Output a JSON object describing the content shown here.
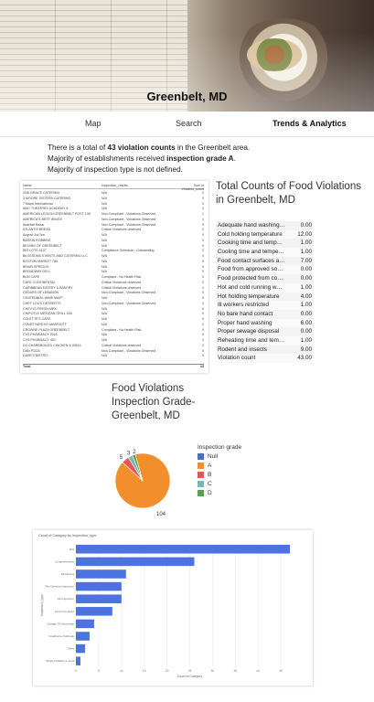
{
  "hero": {
    "title": "Greenbelt, MD"
  },
  "nav": {
    "items": [
      "Map",
      "Search",
      "Trends & Analytics"
    ],
    "active": "Trends & Analytics"
  },
  "summary": {
    "line1_pre": "There is a total of ",
    "line1_bold": "43 violation counts",
    "line1_post": " in the Greenbelt area.",
    "line2_pre": "Majority of establishments received ",
    "line2_bold": "inspection grade A",
    "line2_post": ".",
    "line3": "Majority of inspection type is not defined."
  },
  "inspection_table": {
    "headers": [
      "Name",
      "Inspection_results",
      "Sum of Violation_count"
    ],
    "rows": [
      [
        "2ND GRACE CATERING",
        "N/A",
        "0"
      ],
      [
        "3 MOORE SISTERS CATERING",
        "N/A",
        "0"
      ],
      [
        "7 Maya International",
        "N/A",
        "0"
      ],
      [
        "AMC THEATRES ACADEMY 8",
        "N/A",
        "0"
      ],
      [
        "AMERICAN LEGION GREENBELT POST 136",
        "Non-Compliant - Violations Observed",
        "1"
      ],
      [
        "AMERICA'S BEST WINGS",
        "Non-Compliant - Violations Observed",
        "1"
      ],
      [
        "Anarkali Bazar",
        "Non-Compliant - Violations Observed",
        "0"
      ],
      [
        "ATLANTIS BREAD",
        "Critical Violations observed",
        "0"
      ],
      [
        "August 1st Tea",
        "N/A",
        "0"
      ],
      [
        "BASKIN ROBBINS",
        "N/A",
        "0"
      ],
      [
        "BEIJING OF GREENBELT",
        "N/A",
        "0"
      ],
      [
        "BIG LOTS 5137",
        "Compliance Schedule - Outstanding",
        "0"
      ],
      [
        "BLOSSOMS EVENTS AND CATERING LLC",
        "N/A",
        "0"
      ],
      [
        "BOSTON MARKET 765",
        "N/A",
        "0"
      ],
      [
        "BRAIN SPRIGGS",
        "N/A",
        "0"
      ],
      [
        "BROADWAY DELI",
        "N/A",
        "0"
      ],
      [
        "BUN CAFE",
        "Compliant - No Health Risk",
        "0"
      ],
      [
        "CAFE CONTINENTAL",
        "Critical Violations observed",
        "2"
      ],
      [
        "CARIBBEAN EATERY & BAKERY",
        "Critical Violations observed",
        "2"
      ],
      [
        "CEDARS OF LEBANON",
        "Non-Compliant - Violations Observed",
        "0"
      ],
      [
        "CENTENNIAL WINE MART",
        "N/A",
        "0"
      ],
      [
        "CHEF LOU'S DESSERTS",
        "Non-Compliant - Violations Observed",
        "0"
      ],
      [
        "CHEVYS FRESH MEX",
        "N/A",
        "0"
      ],
      [
        "CHIPOTLE MEXICAN GRILL 438",
        "N/A",
        "0"
      ],
      [
        "COLETTE'S CAFE",
        "N/A",
        "0"
      ],
      [
        "COURTYARD BY MARRIOTT",
        "N/A",
        "0"
      ],
      [
        "CROWNE PLAZA GREENBELT",
        "Compliant - No Health Risk",
        "0"
      ],
      [
        "CVS PHARMACY 2016",
        "N/A",
        "0"
      ],
      [
        "CVS PHARMACY 452",
        "N/A",
        "0"
      ],
      [
        "DC CHARBROILED CHICKEN & GRILL",
        "Critical Violations observed",
        "2"
      ],
      [
        "DAN PIZZA",
        "Non-Compliant - Violations Observed",
        "0"
      ],
      [
        "DAVE'S BISTRO",
        "N/A",
        "0"
      ]
    ],
    "total_label": "Total",
    "total_value": "43"
  },
  "counts": {
    "title": "Total Counts of Food Violations in Greenbelt, MD",
    "rows": [
      [
        "Adequate hand washing f...",
        "0.00"
      ],
      [
        "Cold holding temperature",
        "12.00"
      ],
      [
        "Cooking time and temper...",
        "1.00"
      ],
      [
        "Cooling time and tempera...",
        "1.00"
      ],
      [
        "Food contact surfaces and...",
        "7.00"
      ],
      [
        "Food from approved source",
        "0.00"
      ],
      [
        "Food protected from cont...",
        "0.00"
      ],
      [
        "Hot and cold running wat...",
        "1.00"
      ],
      [
        "Hot holding temperature",
        "4.00"
      ],
      [
        "Ill workers restricted",
        "1.00"
      ],
      [
        "No bare hand contact",
        "0.00"
      ],
      [
        "Proper hand washing",
        "6.00"
      ],
      [
        "Proper sewage disposal",
        "0.00"
      ],
      [
        "Reheating time and temp...",
        "1.00"
      ],
      [
        "Rodent and insects",
        "9.00"
      ],
      [
        "Violation count",
        "43.00"
      ]
    ]
  },
  "pie": {
    "title": "Food Violations Inspection Grade- Greenbelt, MD",
    "legend_title": "Inspection grade",
    "legend": [
      "Null",
      "A",
      "B",
      "C",
      "D"
    ],
    "colors": {
      "Null": "#4c72b0",
      "A": "#f28e2b",
      "B": "#e15759",
      "C": "#76b7b2",
      "D": "#59a14f"
    }
  },
  "chart_data": [
    {
      "type": "pie",
      "title": "Food Violations Inspection Grade- Greenbelt, MD",
      "legend_title": "Inspection grade",
      "categories": [
        "Null",
        "A",
        "B",
        "C",
        "D"
      ],
      "values": [
        0,
        104,
        5,
        3,
        2
      ],
      "data_labels": [
        "",
        "104",
        "5",
        "3",
        "2"
      ]
    },
    {
      "type": "bar",
      "orientation": "horizontal",
      "title": "Count of Category by Inspection_type",
      "categories": [
        "N/A",
        "Comprehensive",
        "Monitoring",
        "Pre-Opening Inspection",
        "Re-inspection",
        "Food Complaint",
        "Change Of Ownership",
        "Foodborne Outbreak",
        "Other",
        "Single Facilities in Area"
      ],
      "values": [
        47,
        26,
        11,
        10,
        10,
        8,
        4,
        3,
        2,
        1
      ],
      "xlabel": "Count of Category",
      "ylabel": "Inspection_type",
      "xlim": [
        0,
        50
      ],
      "x_ticks": [
        "0",
        "5",
        "10",
        "15",
        "20",
        "25",
        "30",
        "35",
        "40",
        "45"
      ],
      "color": "#4c72e0"
    }
  ]
}
